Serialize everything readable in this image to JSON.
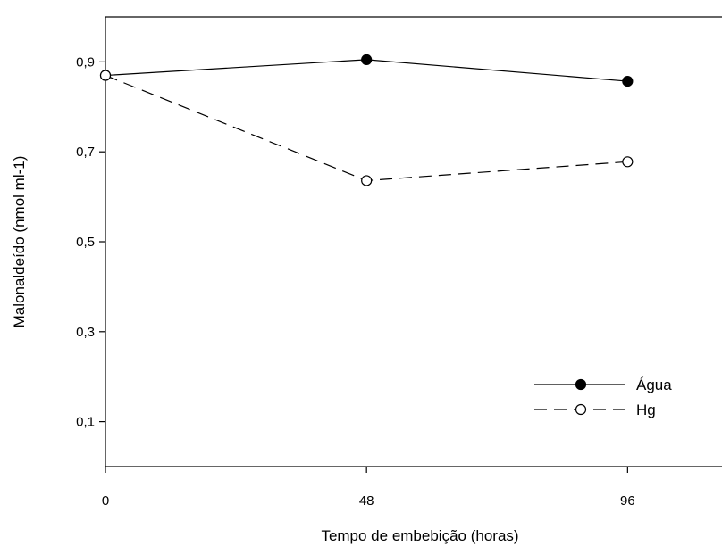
{
  "chart_data": {
    "type": "line",
    "title": "",
    "xlabel": "Tempo de embebição (horas)",
    "ylabel": "Malonaldeído (nmol ml-1)",
    "x": [
      0,
      48,
      96
    ],
    "x_tick_labels": [
      "0",
      "48",
      "96"
    ],
    "xlim": [
      0,
      115
    ],
    "ylim": [
      0,
      1.0
    ],
    "y_ticks": [
      0.1,
      0.3,
      0.5,
      0.7,
      0.9
    ],
    "y_tick_labels": [
      "0,1",
      "0,3",
      "0,5",
      "0,7",
      "0,9"
    ],
    "grid": false,
    "legend_position": "bottom-right",
    "series": [
      {
        "name": "Água",
        "values": [
          0.87,
          0.905,
          0.857
        ],
        "marker": "filled-circle",
        "line_style": "solid",
        "color": "#000000"
      },
      {
        "name": "Hg",
        "values": [
          0.87,
          0.636,
          0.678
        ],
        "marker": "open-circle",
        "line_style": "dashed",
        "color": "#000000"
      }
    ]
  }
}
